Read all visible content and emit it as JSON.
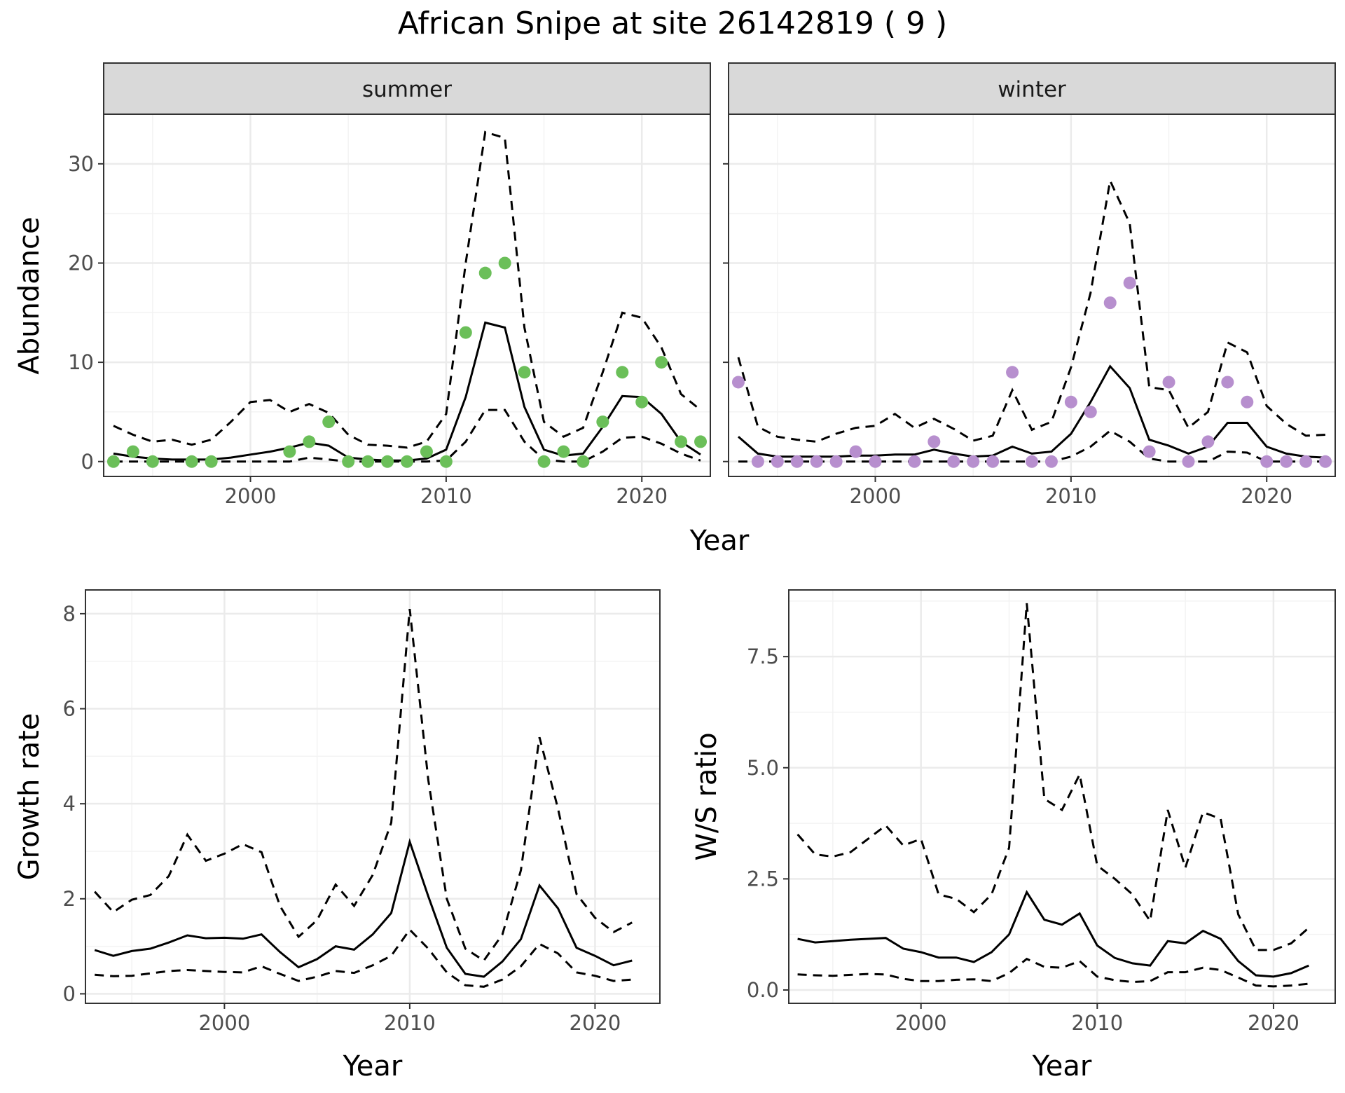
{
  "title": "African Snipe at site 26142819 ( 9 )",
  "colors": {
    "summer_points": "#6bbf59",
    "winter_points": "#b78fce",
    "lines": "#000000",
    "strip_fill": "#d9d9d9",
    "grid": "#ebebeb"
  },
  "chart_data": [
    {
      "id": "abundance",
      "type": "line",
      "facets": [
        "summer",
        "winter"
      ],
      "xlabel": "Year",
      "ylabel": "Abundance",
      "xlim": [
        1992.5,
        2023.5
      ],
      "ylim": [
        -1.5,
        35
      ],
      "xticks": [
        2000,
        2010,
        2020
      ],
      "yticks": [
        0,
        10,
        20,
        30
      ],
      "grid": true,
      "panels": [
        {
          "facet": "summer",
          "x": [
            1993,
            1994,
            1995,
            1996,
            1997,
            1998,
            1999,
            2000,
            2001,
            2002,
            2003,
            2004,
            2005,
            2006,
            2007,
            2008,
            2009,
            2010,
            2011,
            2012,
            2013,
            2014,
            2015,
            2016,
            2017,
            2018,
            2019,
            2020,
            2021,
            2022,
            2023
          ],
          "mean": [
            0.8,
            0.5,
            0.3,
            0.2,
            0.2,
            0.2,
            0.4,
            0.7,
            1.0,
            1.4,
            1.9,
            1.6,
            0.4,
            0.2,
            0.1,
            0.1,
            0.3,
            1.2,
            6.5,
            14.0,
            13.5,
            5.5,
            1.2,
            0.6,
            0.8,
            3.5,
            6.6,
            6.5,
            4.8,
            2.0,
            0.7
          ],
          "upper": [
            3.6,
            2.7,
            2.0,
            2.2,
            1.7,
            2.2,
            4.0,
            6.0,
            6.2,
            5.0,
            5.8,
            4.9,
            2.7,
            1.7,
            1.6,
            1.4,
            2.0,
            4.8,
            20.0,
            33.2,
            32.6,
            13.5,
            4.0,
            2.5,
            3.4,
            9.0,
            15.0,
            14.5,
            11.5,
            6.8,
            5.2
          ],
          "lower": [
            0,
            0,
            0,
            0,
            0,
            0,
            0,
            0,
            0,
            0,
            0.4,
            0.2,
            0,
            0,
            0,
            0,
            0,
            0.1,
            2.0,
            5.2,
            5.2,
            2.0,
            0.2,
            0,
            0,
            1.0,
            2.4,
            2.5,
            1.8,
            0.8,
            0.1
          ],
          "obs_x": [
            1993,
            1994,
            1995,
            1997,
            1998,
            2002,
            2003,
            2004,
            2005,
            2006,
            2007,
            2008,
            2009,
            2010,
            2011,
            2012,
            2013,
            2014,
            2015,
            2016,
            2017,
            2018,
            2019,
            2020,
            2021,
            2022,
            2023
          ],
          "obs": [
            0,
            1,
            0,
            0,
            0,
            1,
            2,
            4,
            0,
            0,
            0,
            0,
            1,
            0,
            13,
            19,
            20,
            9,
            0,
            1,
            0,
            4,
            9,
            6,
            10,
            2,
            2
          ]
        },
        {
          "facet": "winter",
          "x": [
            1993,
            1994,
            1995,
            1996,
            1997,
            1998,
            1999,
            2000,
            2001,
            2002,
            2003,
            2004,
            2005,
            2006,
            2007,
            2008,
            2009,
            2010,
            2011,
            2012,
            2013,
            2014,
            2015,
            2016,
            2017,
            2018,
            2019,
            2020,
            2021,
            2022,
            2023
          ],
          "mean": [
            2.5,
            0.8,
            0.5,
            0.5,
            0.5,
            0.5,
            0.6,
            0.6,
            0.7,
            0.7,
            1.2,
            0.8,
            0.5,
            0.6,
            1.5,
            0.8,
            1.0,
            2.8,
            6.0,
            9.6,
            7.4,
            2.2,
            1.6,
            0.8,
            1.5,
            3.9,
            3.9,
            1.5,
            0.8,
            0.5,
            0.4
          ],
          "upper": [
            10.5,
            3.5,
            2.5,
            2.2,
            2.0,
            2.8,
            3.4,
            3.6,
            4.8,
            3.4,
            4.3,
            3.3,
            2.1,
            2.6,
            7.2,
            3.2,
            4.0,
            9.5,
            17.0,
            28.3,
            24.0,
            7.5,
            7.2,
            3.4,
            5.0,
            12.0,
            11.0,
            5.6,
            3.8,
            2.6,
            2.7
          ],
          "lower": [
            0,
            0,
            0,
            0,
            0,
            0,
            0,
            0,
            0,
            0,
            0,
            0,
            0,
            0,
            0,
            0,
            0,
            0.5,
            1.5,
            3.1,
            2.0,
            0.3,
            0,
            0,
            0,
            1.0,
            0.9,
            0,
            0,
            0,
            0
          ],
          "obs_x": [
            1993,
            1994,
            1995,
            1996,
            1997,
            1998,
            1999,
            2000,
            2002,
            2003,
            2004,
            2005,
            2006,
            2007,
            2008,
            2009,
            2010,
            2011,
            2012,
            2013,
            2014,
            2015,
            2016,
            2017,
            2018,
            2019,
            2020,
            2021,
            2022,
            2023
          ],
          "obs": [
            8,
            0,
            0,
            0,
            0,
            0,
            1,
            0,
            0,
            2,
            0,
            0,
            0,
            9,
            0,
            0,
            6,
            5,
            16,
            18,
            1,
            8,
            0,
            2,
            8,
            6,
            0,
            0,
            0,
            0
          ]
        }
      ]
    },
    {
      "id": "growth",
      "type": "line",
      "xlabel": "Year",
      "ylabel": "Growth rate",
      "xlim": [
        1992.5,
        2023.5
      ],
      "ylim": [
        -0.2,
        8.5
      ],
      "xticks": [
        2000,
        2010,
        2020
      ],
      "yticks": [
        0,
        2,
        4,
        6,
        8
      ],
      "grid": true,
      "x": [
        1993,
        1994,
        1995,
        1996,
        1997,
        1998,
        1999,
        2000,
        2001,
        2002,
        2003,
        2004,
        2005,
        2006,
        2007,
        2008,
        2009,
        2010,
        2011,
        2012,
        2013,
        2014,
        2015,
        2016,
        2017,
        2018,
        2019,
        2020,
        2021,
        2022
      ],
      "mean": [
        0.92,
        0.8,
        0.9,
        0.95,
        1.08,
        1.23,
        1.17,
        1.18,
        1.16,
        1.25,
        0.88,
        0.56,
        0.73,
        1.0,
        0.93,
        1.25,
        1.7,
        3.2,
        2.05,
        0.97,
        0.42,
        0.36,
        0.68,
        1.15,
        2.28,
        1.8,
        0.97,
        0.8,
        0.6,
        0.7
      ],
      "upper": [
        2.15,
        1.72,
        1.98,
        2.08,
        2.48,
        3.35,
        2.8,
        2.95,
        3.15,
        2.98,
        1.85,
        1.2,
        1.55,
        2.3,
        1.85,
        2.5,
        3.6,
        8.1,
        4.5,
        2.0,
        0.95,
        0.7,
        1.25,
        2.6,
        5.4,
        3.9,
        2.1,
        1.6,
        1.3,
        1.5
      ],
      "lower": [
        0.4,
        0.37,
        0.38,
        0.43,
        0.48,
        0.5,
        0.48,
        0.46,
        0.45,
        0.58,
        0.42,
        0.27,
        0.36,
        0.48,
        0.44,
        0.6,
        0.8,
        1.35,
        0.95,
        0.45,
        0.18,
        0.15,
        0.3,
        0.58,
        1.05,
        0.85,
        0.45,
        0.38,
        0.27,
        0.3
      ]
    },
    {
      "id": "ws_ratio",
      "type": "line",
      "xlabel": "Year",
      "ylabel": "W/S ratio",
      "xlim": [
        1992.5,
        2023.5
      ],
      "ylim": [
        -0.3,
        9.0
      ],
      "xticks": [
        2000,
        2010,
        2020
      ],
      "yticks": [
        0.0,
        2.5,
        5.0,
        7.5
      ],
      "ytick_labels": [
        "0.0",
        "2.5",
        "5.0",
        "7.5"
      ],
      "grid": true,
      "x": [
        1993,
        1994,
        1995,
        1996,
        1997,
        1998,
        1999,
        2000,
        2001,
        2002,
        2003,
        2004,
        2005,
        2006,
        2007,
        2008,
        2009,
        2010,
        2011,
        2012,
        2013,
        2014,
        2015,
        2016,
        2017,
        2018,
        2019,
        2020,
        2021,
        2022
      ],
      "mean": [
        1.15,
        1.07,
        1.1,
        1.13,
        1.15,
        1.17,
        0.93,
        0.85,
        0.73,
        0.73,
        0.63,
        0.85,
        1.25,
        2.2,
        1.58,
        1.47,
        1.72,
        1.0,
        0.72,
        0.6,
        0.55,
        1.1,
        1.05,
        1.33,
        1.15,
        0.65,
        0.33,
        0.3,
        0.38,
        0.55
      ],
      "upper": [
        3.5,
        3.05,
        3.0,
        3.1,
        3.4,
        3.7,
        3.25,
        3.4,
        2.15,
        2.05,
        1.75,
        2.15,
        3.2,
        8.7,
        4.3,
        4.05,
        4.85,
        2.8,
        2.5,
        2.15,
        1.55,
        4.05,
        2.75,
        4.0,
        3.85,
        1.7,
        0.9,
        0.9,
        1.05,
        1.4
      ],
      "lower": [
        0.35,
        0.33,
        0.32,
        0.34,
        0.36,
        0.35,
        0.25,
        0.2,
        0.2,
        0.23,
        0.24,
        0.2,
        0.38,
        0.7,
        0.52,
        0.5,
        0.65,
        0.3,
        0.22,
        0.18,
        0.2,
        0.4,
        0.4,
        0.5,
        0.45,
        0.28,
        0.1,
        0.08,
        0.1,
        0.14
      ]
    }
  ]
}
